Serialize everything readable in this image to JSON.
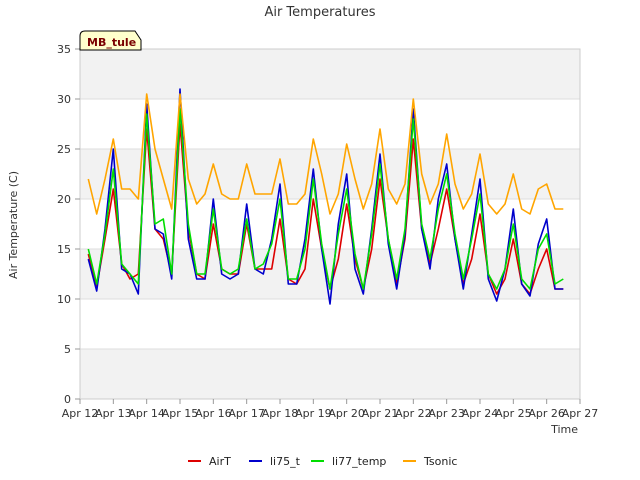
{
  "chart_data": {
    "type": "line",
    "title": "Air Temperatures",
    "xlabel": "Time",
    "ylabel": "Air Temperature (C)",
    "station_label": "MB_tule",
    "ylim": [
      0,
      35
    ],
    "yticks": [
      0,
      5,
      10,
      15,
      20,
      25,
      30,
      35
    ],
    "xlim": [
      0,
      15
    ],
    "xticks": [
      0,
      1,
      2,
      3,
      4,
      5,
      6,
      7,
      8,
      9,
      10,
      11,
      12,
      13,
      14,
      15
    ],
    "xtick_labels": [
      "Apr 12",
      "Apr 13",
      "Apr 14",
      "Apr 15",
      "Apr 16",
      "Apr 17",
      "Apr 18",
      "Apr 19",
      "Apr 20",
      "Apr 21",
      "Apr 22",
      "Apr 23",
      "Apr 24",
      "Apr 25",
      "Apr 26",
      "Apr 27"
    ],
    "grid": true,
    "legend_position": "bottom",
    "series": [
      {
        "name": "AirT",
        "color": "#dd0000",
        "x": [
          0.25,
          0.5,
          0.75,
          1.0,
          1.25,
          1.5,
          1.75,
          2.0,
          2.25,
          2.5,
          2.75,
          3.0,
          3.25,
          3.5,
          3.75,
          4.0,
          4.25,
          4.5,
          4.75,
          5.0,
          5.25,
          5.5,
          5.75,
          6.0,
          6.25,
          6.5,
          6.75,
          7.0,
          7.25,
          7.5,
          7.75,
          8.0,
          8.25,
          8.5,
          8.75,
          9.0,
          9.25,
          9.5,
          9.75,
          10.0,
          10.25,
          10.5,
          10.75,
          11.0,
          11.25,
          11.5,
          11.75,
          12.0,
          12.25,
          12.5,
          12.75,
          13.0,
          13.25,
          13.5,
          13.75,
          14.0,
          14.25,
          14.5
        ],
        "values": [
          14.5,
          11.2,
          16.0,
          21.0,
          13.5,
          12.0,
          12.5,
          27.0,
          17.0,
          16.0,
          12.5,
          27.5,
          17.0,
          12.5,
          12.0,
          17.5,
          13.0,
          12.5,
          12.5,
          17.5,
          13.0,
          13.0,
          13.0,
          18.0,
          12.0,
          11.5,
          13.0,
          20.0,
          15.0,
          11.0,
          14.0,
          19.5,
          14.0,
          11.0,
          15.0,
          22.0,
          16.0,
          11.5,
          16.0,
          26.0,
          17.0,
          13.5,
          17.0,
          21.0,
          16.0,
          11.5,
          14.0,
          18.5,
          12.5,
          10.5,
          12.0,
          16.0,
          11.5,
          10.5,
          13.0,
          15.0,
          11.0,
          11.0
        ]
      },
      {
        "name": "li75_t",
        "color": "#0000cc",
        "x": [
          0.25,
          0.5,
          0.75,
          1.0,
          1.25,
          1.5,
          1.75,
          2.0,
          2.25,
          2.5,
          2.75,
          3.0,
          3.25,
          3.5,
          3.75,
          4.0,
          4.25,
          4.5,
          4.75,
          5.0,
          5.25,
          5.5,
          5.75,
          6.0,
          6.25,
          6.5,
          6.75,
          7.0,
          7.25,
          7.5,
          7.75,
          8.0,
          8.25,
          8.5,
          8.75,
          9.0,
          9.25,
          9.5,
          9.75,
          10.0,
          10.25,
          10.5,
          10.75,
          11.0,
          11.25,
          11.5,
          11.75,
          12.0,
          12.25,
          12.5,
          12.75,
          13.0,
          13.25,
          13.5,
          13.75,
          14.0,
          14.25,
          14.5
        ],
        "values": [
          14.0,
          10.8,
          17.0,
          25.0,
          13.0,
          12.5,
          10.5,
          29.5,
          17.0,
          16.5,
          12.0,
          31.0,
          16.0,
          12.0,
          12.0,
          20.0,
          12.5,
          12.0,
          12.5,
          19.5,
          13.0,
          12.5,
          16.0,
          21.5,
          11.5,
          11.5,
          16.0,
          23.0,
          15.0,
          9.5,
          17.5,
          22.5,
          13.0,
          10.5,
          17.0,
          24.5,
          15.5,
          11.0,
          16.5,
          29.0,
          17.0,
          13.0,
          20.0,
          23.5,
          16.0,
          11.0,
          16.5,
          22.0,
          12.0,
          9.8,
          13.0,
          19.0,
          11.5,
          10.3,
          15.5,
          18.0,
          11.0,
          11.0
        ]
      },
      {
        "name": "li77_temp",
        "color": "#00dd00",
        "x": [
          0.25,
          0.5,
          0.75,
          1.0,
          1.25,
          1.5,
          1.75,
          2.0,
          2.25,
          2.5,
          2.75,
          3.0,
          3.25,
          3.5,
          3.75,
          4.0,
          4.25,
          4.5,
          4.75,
          5.0,
          5.25,
          5.5,
          5.75,
          6.0,
          6.25,
          6.5,
          6.75,
          7.0,
          7.25,
          7.5,
          7.75,
          8.0,
          8.25,
          8.5,
          8.75,
          9.0,
          9.25,
          9.5,
          9.75,
          10.0,
          10.25,
          10.5,
          10.75,
          11.0,
          11.25,
          11.5,
          11.75,
          12.0,
          12.25,
          12.5,
          12.75,
          13.0,
          13.25,
          13.5,
          13.75,
          14.0,
          14.25,
          14.5
        ],
        "values": [
          15.0,
          11.5,
          16.5,
          23.0,
          13.5,
          12.5,
          11.5,
          28.5,
          17.5,
          18.0,
          12.5,
          29.0,
          17.5,
          12.5,
          12.5,
          19.0,
          13.0,
          12.5,
          13.0,
          18.0,
          13.0,
          13.5,
          15.5,
          20.0,
          12.0,
          12.0,
          15.0,
          22.0,
          15.5,
          11.0,
          16.5,
          21.0,
          14.5,
          11.0,
          16.5,
          23.5,
          16.0,
          12.0,
          17.0,
          28.0,
          17.5,
          14.0,
          19.0,
          22.5,
          16.5,
          12.0,
          16.0,
          20.5,
          12.5,
          11.0,
          13.0,
          17.5,
          12.0,
          11.0,
          15.0,
          16.5,
          11.5,
          12.0
        ]
      },
      {
        "name": "Tsonic",
        "color": "#ffa500",
        "x": [
          0.25,
          0.5,
          0.75,
          1.0,
          1.25,
          1.5,
          1.75,
          2.0,
          2.25,
          2.5,
          2.75,
          3.0,
          3.25,
          3.5,
          3.75,
          4.0,
          4.25,
          4.5,
          4.75,
          5.0,
          5.25,
          5.5,
          5.75,
          6.0,
          6.25,
          6.5,
          6.75,
          7.0,
          7.25,
          7.5,
          7.75,
          8.0,
          8.25,
          8.5,
          8.75,
          9.0,
          9.25,
          9.5,
          9.75,
          10.0,
          10.25,
          10.5,
          10.75,
          11.0,
          11.25,
          11.5,
          11.75,
          12.0,
          12.25,
          12.5,
          12.75,
          13.0,
          13.25,
          13.5,
          13.75,
          14.0,
          14.25,
          14.5
        ],
        "values": [
          22.0,
          18.5,
          22.0,
          26.0,
          21.0,
          21.0,
          20.0,
          30.5,
          25.0,
          22.0,
          19.0,
          30.5,
          22.0,
          19.5,
          20.5,
          23.5,
          20.5,
          20.0,
          20.0,
          23.5,
          20.5,
          20.5,
          20.5,
          24.0,
          19.5,
          19.5,
          20.5,
          26.0,
          22.5,
          18.5,
          20.5,
          25.5,
          22.0,
          19.0,
          21.5,
          27.0,
          21.0,
          19.5,
          21.5,
          30.0,
          22.5,
          19.5,
          21.5,
          26.5,
          21.5,
          19.0,
          20.5,
          24.5,
          19.5,
          18.5,
          19.5,
          22.5,
          19.0,
          18.5,
          21.0,
          21.5,
          19.0,
          19.0
        ]
      }
    ]
  }
}
